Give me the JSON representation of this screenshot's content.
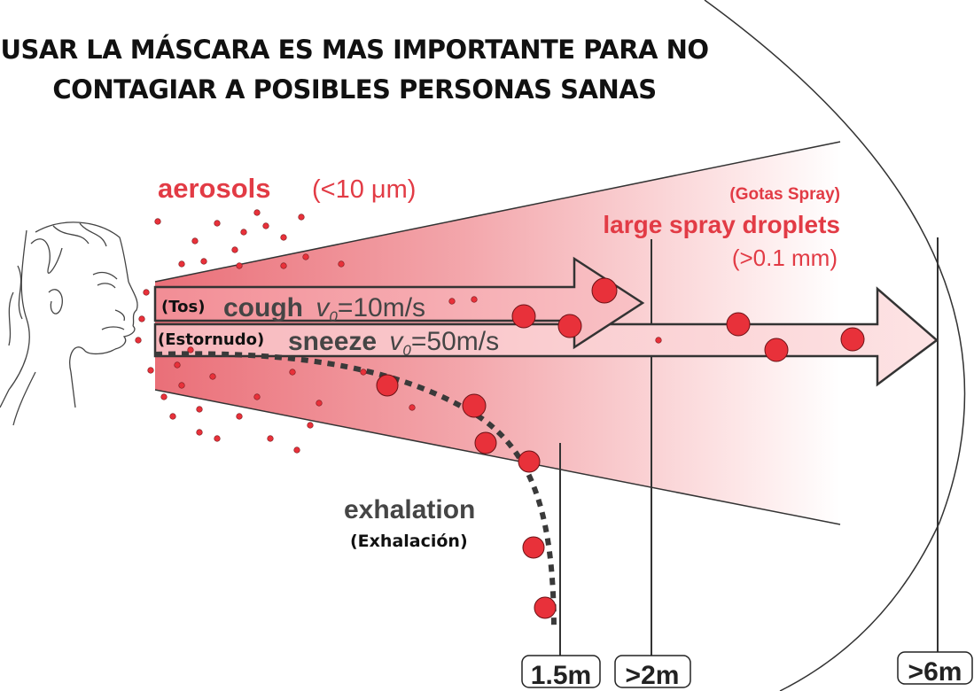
{
  "title": {
    "line1": "USAR LA MÁSCARA ES MAS IMPORTANTE PARA NO",
    "line2": "CONTAGIAR A POSIBLES PERSONAS SANAS"
  },
  "aerosols": {
    "label": "aerosols",
    "size": "(<10 μm)"
  },
  "spray": {
    "spanish": "(Gotas Spray)",
    "label": "large spray droplets",
    "size": "(>0.1 mm)"
  },
  "cough": {
    "spanish": "(Tos)",
    "label": "cough",
    "velocity_var": "v",
    "velocity_sub": "0",
    "velocity_value": "=10m/s"
  },
  "sneeze": {
    "spanish": "(Estornudo)",
    "label": "sneeze",
    "velocity_var": "v",
    "velocity_sub": "0",
    "velocity_value": "=50m/s"
  },
  "exhalation": {
    "label": "exhalation",
    "spanish": "(Exhalación)"
  },
  "distances": [
    "1.5m",
    ">2m",
    ">6m"
  ],
  "colors": {
    "red": "#e23b45",
    "dark_text": "#454545",
    "droplet": "#e8313a"
  }
}
